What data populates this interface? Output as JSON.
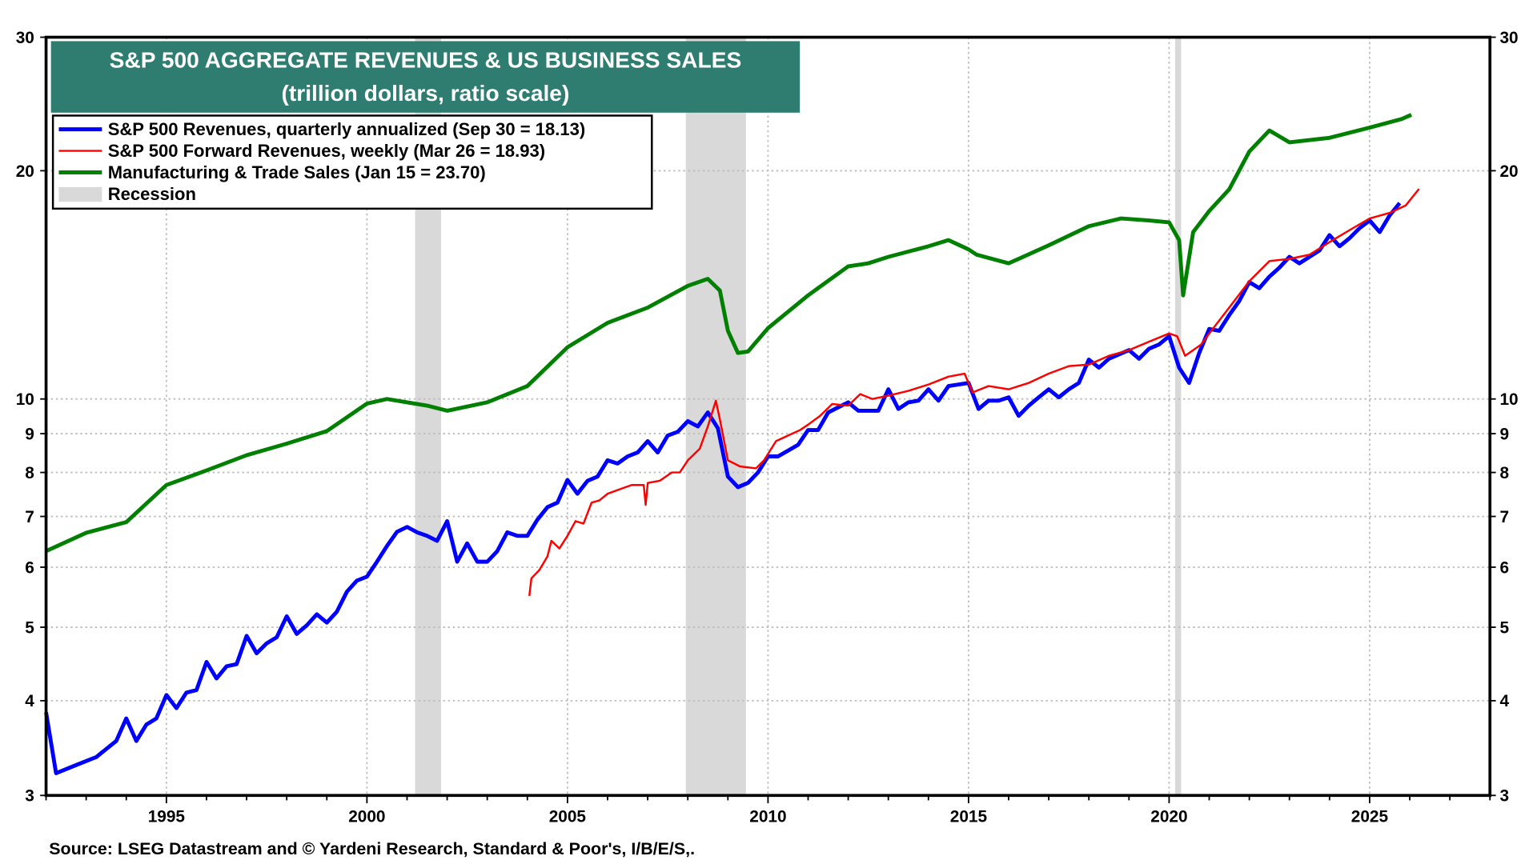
{
  "chart_data": {
    "type": "line",
    "title": "S&P 500 AGGREGATE REVENUES & US BUSINESS SALES",
    "subtitle": "(trillion dollars, ratio scale)",
    "source": "Source: LSEG Datastream and © Yardeni Research, Standard & Poor's, I/B/E/S,.",
    "y_scale": "log",
    "ylim": [
      3,
      30
    ],
    "xlim": [
      1992.0,
      2028.0
    ],
    "y_ticks": [
      3,
      4,
      5,
      6,
      7,
      8,
      9,
      10,
      20,
      30
    ],
    "y_tick_labels": [
      "3",
      "4",
      "5",
      "6",
      "7",
      "8",
      "9",
      "10",
      "20",
      "30"
    ],
    "x_ticks": [
      1995,
      2000,
      2005,
      2010,
      2015,
      2020,
      2025
    ],
    "x_tick_labels": [
      "1995",
      "2000",
      "2005",
      "2010",
      "2015",
      "2020",
      "2025"
    ],
    "grid": true,
    "legend_position": "top-left",
    "recessions": [
      [
        2001.2,
        2001.85
      ],
      [
        2007.95,
        2009.45
      ],
      [
        2020.15,
        2020.3
      ]
    ],
    "legend": [
      {
        "label": "S&P 500 Revenues, quarterly annualized (Sep 30 = 18.13)",
        "color": "#0000ff"
      },
      {
        "label": "S&P 500 Forward Revenues, weekly (Mar 26 = 18.93)",
        "color": "#ff0000"
      },
      {
        "label": "Manufacturing & Trade Sales (Jan 15 = 23.70)",
        "color": "#008000"
      },
      {
        "label": "Recession",
        "color": "#d9d9d9"
      }
    ],
    "series": [
      {
        "name": "S&P 500 Revenues, quarterly annualized",
        "color": "#0000ff",
        "x": [
          1992.0,
          1992.25,
          1992.75,
          1993.25,
          1993.75,
          1994.0,
          1994.25,
          1994.5,
          1994.75,
          1995.0,
          1995.25,
          1995.5,
          1995.75,
          1996.0,
          1996.25,
          1996.5,
          1996.75,
          1997.0,
          1997.25,
          1997.5,
          1997.75,
          1998.0,
          1998.25,
          1998.5,
          1998.75,
          1999.0,
          1999.25,
          1999.5,
          1999.75,
          2000.0,
          2000.25,
          2000.5,
          2000.75,
          2001.0,
          2001.25,
          2001.5,
          2001.75,
          2002.0,
          2002.25,
          2002.5,
          2002.75,
          2003.0,
          2003.25,
          2003.5,
          2003.75,
          2004.0,
          2004.25,
          2004.5,
          2004.75,
          2005.0,
          2005.25,
          2005.5,
          2005.75,
          2006.0,
          2006.25,
          2006.5,
          2006.75,
          2007.0,
          2007.25,
          2007.5,
          2007.75,
          2008.0,
          2008.25,
          2008.5,
          2008.75,
          2009.0,
          2009.25,
          2009.5,
          2009.75,
          2010.0,
          2010.25,
          2010.5,
          2010.75,
          2011.0,
          2011.25,
          2011.5,
          2011.75,
          2012.0,
          2012.25,
          2012.5,
          2012.75,
          2013.0,
          2013.25,
          2013.5,
          2013.75,
          2014.0,
          2014.25,
          2014.5,
          2014.75,
          2015.0,
          2015.25,
          2015.5,
          2015.75,
          2016.0,
          2016.25,
          2016.5,
          2016.75,
          2017.0,
          2017.25,
          2017.5,
          2017.75,
          2018.0,
          2018.25,
          2018.5,
          2018.75,
          2019.0,
          2019.25,
          2019.5,
          2019.75,
          2020.0,
          2020.25,
          2020.5,
          2020.75,
          2021.0,
          2021.25,
          2021.5,
          2021.75,
          2022.0,
          2022.25,
          2022.5,
          2022.75,
          2023.0,
          2023.25,
          2023.5,
          2023.75,
          2024.0,
          2024.25,
          2024.5,
          2024.75,
          2025.0,
          2025.25,
          2025.5,
          2025.75
        ],
        "values": [
          3.86,
          3.21,
          3.29,
          3.37,
          3.54,
          3.79,
          3.54,
          3.72,
          3.79,
          4.07,
          3.91,
          4.1,
          4.13,
          4.5,
          4.28,
          4.44,
          4.47,
          4.87,
          4.62,
          4.76,
          4.85,
          5.17,
          4.9,
          5.03,
          5.2,
          5.07,
          5.24,
          5.57,
          5.76,
          5.83,
          6.1,
          6.4,
          6.68,
          6.78,
          6.67,
          6.6,
          6.5,
          6.9,
          6.1,
          6.45,
          6.1,
          6.1,
          6.3,
          6.67,
          6.6,
          6.6,
          6.93,
          7.2,
          7.3,
          7.82,
          7.5,
          7.8,
          7.9,
          8.3,
          8.22,
          8.4,
          8.5,
          8.8,
          8.5,
          8.95,
          9.05,
          9.35,
          9.2,
          9.6,
          9.15,
          7.9,
          7.65,
          7.75,
          8.0,
          8.4,
          8.4,
          8.55,
          8.7,
          9.1,
          9.1,
          9.6,
          9.75,
          9.9,
          9.65,
          9.65,
          9.65,
          10.3,
          9.7,
          9.9,
          9.95,
          10.3,
          9.95,
          10.4,
          10.45,
          10.5,
          9.7,
          9.95,
          9.95,
          10.05,
          9.5,
          9.8,
          10.05,
          10.3,
          10.05,
          10.3,
          10.5,
          11.27,
          11.0,
          11.3,
          11.45,
          11.6,
          11.3,
          11.65,
          11.8,
          12.1,
          11.0,
          10.5,
          11.5,
          12.37,
          12.3,
          12.9,
          13.47,
          14.26,
          14.0,
          14.5,
          14.9,
          15.4,
          15.1,
          15.4,
          15.7,
          16.45,
          15.9,
          16.3,
          16.8,
          17.2,
          16.6,
          17.46,
          18.13
        ]
      },
      {
        "name": "S&P 500 Forward Revenues, weekly",
        "color": "#ff0000",
        "x": [
          2004.05,
          2004.1,
          2004.3,
          2004.5,
          2004.6,
          2004.8,
          2005.0,
          2005.2,
          2005.4,
          2005.6,
          2005.8,
          2006.0,
          2006.3,
          2006.6,
          2006.9,
          2006.95,
          2007.0,
          2007.3,
          2007.6,
          2007.8,
          2008.0,
          2008.3,
          2008.5,
          2008.7,
          2008.8,
          2009.0,
          2009.3,
          2009.7,
          2009.9,
          2010.2,
          2010.5,
          2010.8,
          2011.0,
          2011.3,
          2011.6,
          2012.0,
          2012.3,
          2012.6,
          2013.0,
          2013.5,
          2014.0,
          2014.5,
          2014.9,
          2015.1,
          2015.5,
          2016.0,
          2016.5,
          2017.0,
          2017.5,
          2018.0,
          2018.5,
          2019.0,
          2019.5,
          2020.0,
          2020.2,
          2020.4,
          2020.8,
          2021.0,
          2021.5,
          2022.0,
          2022.5,
          2023.0,
          2023.5,
          2024.0,
          2024.5,
          2025.0,
          2025.5,
          2025.9,
          2026.23
        ],
        "values": [
          5.5,
          5.8,
          5.95,
          6.2,
          6.5,
          6.35,
          6.6,
          6.9,
          6.85,
          7.3,
          7.35,
          7.5,
          7.6,
          7.7,
          7.7,
          7.25,
          7.75,
          7.8,
          8.0,
          8.0,
          8.3,
          8.6,
          9.2,
          9.95,
          9.4,
          8.3,
          8.15,
          8.1,
          8.3,
          8.8,
          8.95,
          9.1,
          9.25,
          9.5,
          9.85,
          9.8,
          10.15,
          10.0,
          10.1,
          10.25,
          10.45,
          10.7,
          10.8,
          10.2,
          10.4,
          10.3,
          10.5,
          10.8,
          11.05,
          11.1,
          11.4,
          11.6,
          11.9,
          12.2,
          12.1,
          11.4,
          11.8,
          12.2,
          13.2,
          14.3,
          15.2,
          15.3,
          15.5,
          16.1,
          16.7,
          17.3,
          17.6,
          18.0,
          18.93
        ]
      },
      {
        "name": "Manufacturing & Trade Sales",
        "color": "#008000",
        "x": [
          1992.0,
          1993.0,
          1994.0,
          1995.0,
          1996.0,
          1997.0,
          1998.0,
          1999.0,
          2000.0,
          2000.5,
          2001.0,
          2001.5,
          2002.0,
          2003.0,
          2004.0,
          2005.0,
          2006.0,
          2007.0,
          2008.0,
          2008.5,
          2008.8,
          2009.0,
          2009.25,
          2009.5,
          2010.0,
          2011.0,
          2012.0,
          2012.5,
          2013.0,
          2014.0,
          2014.5,
          2015.0,
          2015.2,
          2016.0,
          2017.0,
          2018.0,
          2018.8,
          2019.5,
          2020.0,
          2020.25,
          2020.35,
          2020.6,
          2021.0,
          2021.5,
          2022.0,
          2022.5,
          2023.0,
          2024.0,
          2025.0,
          2025.8,
          2026.04
        ],
        "values": [
          6.3,
          6.66,
          6.88,
          7.7,
          8.05,
          8.43,
          8.73,
          9.07,
          9.86,
          10.0,
          9.9,
          9.8,
          9.65,
          9.9,
          10.4,
          11.7,
          12.6,
          13.2,
          14.1,
          14.4,
          13.9,
          12.3,
          11.5,
          11.55,
          12.4,
          13.7,
          14.96,
          15.1,
          15.4,
          15.9,
          16.2,
          15.75,
          15.5,
          15.1,
          15.95,
          16.9,
          17.3,
          17.2,
          17.1,
          16.2,
          13.7,
          16.6,
          17.7,
          18.9,
          21.2,
          22.6,
          21.8,
          22.1,
          22.8,
          23.4,
          23.7
        ]
      }
    ]
  }
}
